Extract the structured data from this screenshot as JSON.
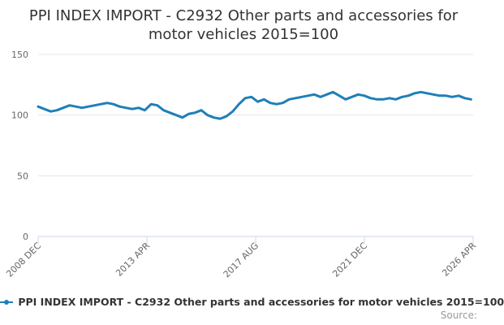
{
  "chart_data": {
    "type": "line",
    "title_line1": "PPI INDEX IMPORT - C2932 Other parts and accessories for",
    "title_line2": "motor vehicles 2015=100",
    "ylim": [
      0,
      150
    ],
    "y_ticks": [
      0,
      50,
      100,
      150
    ],
    "y_tick_labels": [
      "0",
      "50",
      "100",
      "150"
    ],
    "x_tick_labels": [
      "2008 DEC",
      "2013 APR",
      "2017 AUG",
      "2021 DEC",
      "2026 APR"
    ],
    "x_range": [
      "2008 DEC",
      "2026 APR"
    ],
    "grid": true,
    "legend_position": "bottom",
    "credits": "Source:",
    "series": [
      {
        "name": "PPI INDEX IMPORT - C2932 Other parts and accessories for motor vehicles 2015=100",
        "color": "#1f7fb8",
        "x": [
          "2008 DEC",
          "2009 MAR",
          "2009 JUN",
          "2009 SEP",
          "2009 DEC",
          "2010 MAR",
          "2010 JUN",
          "2010 SEP",
          "2010 DEC",
          "2011 MAR",
          "2011 JUN",
          "2011 SEP",
          "2011 DEC",
          "2012 MAR",
          "2012 JUN",
          "2012 SEP",
          "2012 DEC",
          "2013 MAR",
          "2013 JUN",
          "2013 SEP",
          "2013 DEC",
          "2014 MAR",
          "2014 JUN",
          "2014 SEP",
          "2014 DEC",
          "2015 MAR",
          "2015 JUN",
          "2015 SEP",
          "2015 DEC",
          "2016 MAR",
          "2016 JUN",
          "2016 SEP",
          "2016 DEC",
          "2017 MAR",
          "2017 JUN",
          "2017 SEP",
          "2017 DEC",
          "2018 MAR",
          "2018 JUN",
          "2018 SEP",
          "2018 DEC",
          "2019 MAR",
          "2019 JUN",
          "2019 SEP",
          "2019 DEC",
          "2020 MAR",
          "2020 JUN",
          "2020 SEP",
          "2020 DEC",
          "2021 MAR",
          "2021 JUN",
          "2021 SEP",
          "2021 DEC",
          "2022 MAR",
          "2022 JUN",
          "2022 SEP",
          "2022 DEC",
          "2023 MAR",
          "2023 JUN",
          "2023 SEP",
          "2023 DEC",
          "2024 MAR",
          "2024 JUN",
          "2024 SEP",
          "2024 DEC",
          "2025 MAR",
          "2025 JUN",
          "2025 SEP",
          "2025 DEC",
          "2026 MAR"
        ],
        "values": [
          107,
          105,
          103,
          104,
          106,
          108,
          107,
          106,
          107,
          108,
          109,
          110,
          109,
          107,
          106,
          105,
          106,
          104,
          109,
          108,
          104,
          102,
          100,
          98,
          101,
          102,
          104,
          100,
          98,
          97,
          99,
          103,
          109,
          114,
          115,
          111,
          113,
          110,
          109,
          110,
          113,
          114,
          115,
          116,
          117,
          115,
          117,
          119,
          116,
          113,
          115,
          117,
          116,
          114,
          113,
          113,
          114,
          113,
          115,
          116,
          118,
          119,
          118,
          117,
          116,
          116,
          115,
          116,
          114,
          113
        ]
      }
    ]
  }
}
